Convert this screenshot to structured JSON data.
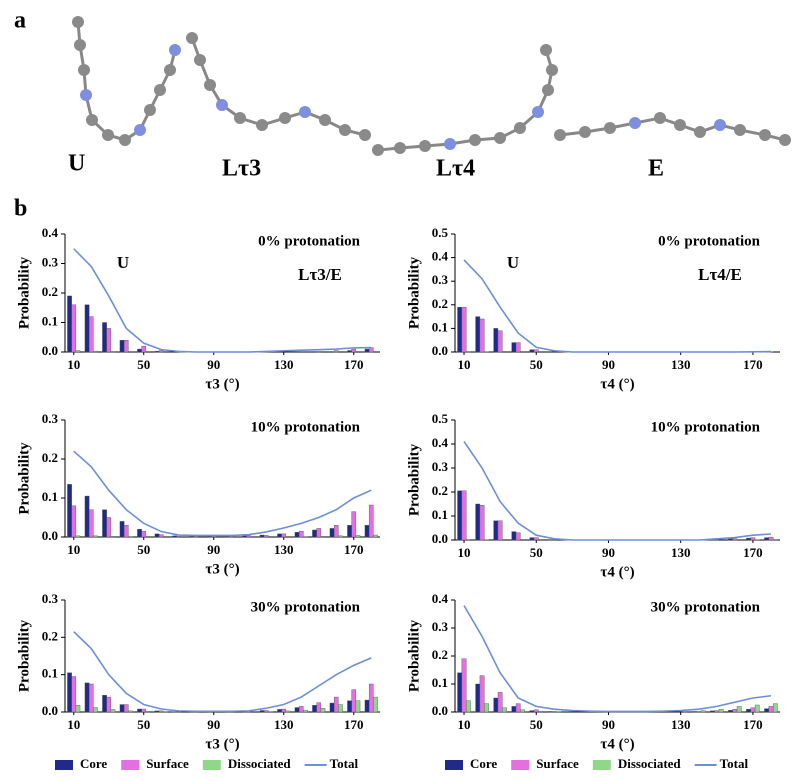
{
  "header": {
    "panel_a": "a",
    "panel_b": "b"
  },
  "molecules": [
    "U",
    "Lτ3",
    "Lτ4",
    "E"
  ],
  "chart_data": [
    {
      "type": "bar",
      "title": "0% protonation",
      "annotations": [
        "U",
        "Lτ3/E"
      ],
      "xlabel": "τ3 (°)",
      "ylabel": "Probability",
      "x": [
        10,
        20,
        30,
        40,
        50,
        60,
        70,
        80,
        90,
        100,
        110,
        120,
        130,
        140,
        150,
        160,
        170,
        180
      ],
      "xlim": [
        5,
        185
      ],
      "xticks": [
        10,
        50,
        90,
        130,
        170
      ],
      "ylim": [
        0,
        0.4
      ],
      "yticks": [
        {
          "value": 0,
          "label": "0.0"
        },
        0.1,
        0.2,
        0.3,
        0.4
      ],
      "series": [
        {
          "name": "Core",
          "color": "#1f2a8a",
          "values": [
            0.19,
            0.16,
            0.1,
            0.04,
            0.01,
            0.003,
            0,
            0,
            0,
            0,
            0,
            0,
            0,
            0,
            0,
            0,
            0.005,
            0.01
          ]
        },
        {
          "name": "Surface",
          "color": "#e46fe0",
          "values": [
            0.16,
            0.12,
            0.08,
            0.04,
            0.02,
            0.005,
            0,
            0,
            0,
            0,
            0,
            0,
            0,
            0,
            0.002,
            0.005,
            0.01,
            0.015
          ]
        },
        {
          "name": "Dissociated",
          "color": "#8fd88a",
          "values": [
            0.005,
            0.003,
            0.002,
            0,
            0,
            0,
            0,
            0,
            0,
            0,
            0,
            0,
            0,
            0,
            0,
            0,
            0,
            0
          ]
        },
        {
          "name": "Total",
          "color": "#6b8fd8",
          "type": "line",
          "values": [
            0.35,
            0.29,
            0.19,
            0.08,
            0.03,
            0.008,
            0.002,
            0,
            0,
            0,
            0,
            0.002,
            0.004,
            0.006,
            0.008,
            0.01,
            0.014,
            0.015
          ]
        }
      ]
    },
    {
      "type": "bar",
      "title": "0% protonation",
      "annotations": [
        "U",
        "Lτ4/E"
      ],
      "xlabel": "τ4 (°)",
      "ylabel": "Probability",
      "x": [
        10,
        20,
        30,
        40,
        50,
        60,
        70,
        80,
        90,
        100,
        110,
        120,
        130,
        140,
        150,
        160,
        170,
        180
      ],
      "xlim": [
        5,
        185
      ],
      "xticks": [
        10,
        50,
        90,
        130,
        170
      ],
      "ylim": [
        0,
        0.5
      ],
      "yticks": [
        {
          "value": 0,
          "label": "0.0"
        },
        0.1,
        0.2,
        0.3,
        0.4,
        0.5
      ],
      "series": [
        {
          "name": "Core",
          "color": "#1f2a8a",
          "values": [
            0.19,
            0.15,
            0.1,
            0.04,
            0.01,
            0,
            0,
            0,
            0,
            0,
            0,
            0,
            0,
            0,
            0,
            0,
            0,
            0
          ]
        },
        {
          "name": "Surface",
          "color": "#e46fe0",
          "values": [
            0.19,
            0.14,
            0.09,
            0.04,
            0.01,
            0,
            0,
            0,
            0,
            0,
            0,
            0,
            0,
            0,
            0,
            0,
            0,
            0.001
          ]
        },
        {
          "name": "Dissociated",
          "color": "#8fd88a",
          "values": [
            0.002,
            0.001,
            0,
            0,
            0,
            0,
            0,
            0,
            0,
            0,
            0,
            0,
            0,
            0,
            0,
            0,
            0,
            0
          ]
        },
        {
          "name": "Total",
          "color": "#6b8fd8",
          "type": "line",
          "values": [
            0.39,
            0.31,
            0.19,
            0.08,
            0.02,
            0.005,
            0,
            0,
            0,
            0,
            0,
            0,
            0,
            0,
            0,
            0,
            0.001,
            0.002
          ]
        }
      ]
    },
    {
      "type": "bar",
      "title": "10% protonation",
      "annotations": [],
      "xlabel": "τ3 (°)",
      "ylabel": "Probability",
      "x": [
        10,
        20,
        30,
        40,
        50,
        60,
        70,
        80,
        90,
        100,
        110,
        120,
        130,
        140,
        150,
        160,
        170,
        180
      ],
      "xlim": [
        5,
        185
      ],
      "xticks": [
        10,
        50,
        90,
        130,
        170
      ],
      "ylim": [
        0,
        0.3
      ],
      "yticks": [
        {
          "value": 0,
          "label": "0.0"
        },
        0.1,
        0.2,
        0.3
      ],
      "series": [
        {
          "name": "Core",
          "color": "#1f2a8a",
          "values": [
            0.135,
            0.105,
            0.07,
            0.04,
            0.02,
            0.008,
            0.003,
            0.002,
            0.002,
            0.002,
            0.003,
            0.005,
            0.008,
            0.012,
            0.018,
            0.022,
            0.03,
            0.03
          ]
        },
        {
          "name": "Surface",
          "color": "#e46fe0",
          "values": [
            0.08,
            0.07,
            0.05,
            0.03,
            0.015,
            0.006,
            0.002,
            0.002,
            0.002,
            0.002,
            0.003,
            0.004,
            0.008,
            0.015,
            0.022,
            0.03,
            0.065,
            0.082
          ]
        },
        {
          "name": "Dissociated",
          "color": "#8fd88a",
          "values": [
            0.003,
            0.003,
            0.002,
            0.001,
            0,
            0,
            0,
            0,
            0,
            0,
            0,
            0,
            0,
            0.001,
            0.002,
            0.003,
            0.004,
            0.005
          ]
        },
        {
          "name": "Total",
          "color": "#6b8fd8",
          "type": "line",
          "values": [
            0.22,
            0.18,
            0.12,
            0.07,
            0.035,
            0.014,
            0.005,
            0.004,
            0.004,
            0.004,
            0.006,
            0.013,
            0.023,
            0.035,
            0.05,
            0.07,
            0.1,
            0.12
          ]
        }
      ]
    },
    {
      "type": "bar",
      "title": "10% protonation",
      "annotations": [],
      "xlabel": "τ4 (°)",
      "ylabel": "Probability",
      "x": [
        10,
        20,
        30,
        40,
        50,
        60,
        70,
        80,
        90,
        100,
        110,
        120,
        130,
        140,
        150,
        160,
        170,
        180
      ],
      "xlim": [
        5,
        185
      ],
      "xticks": [
        10,
        50,
        90,
        130,
        170
      ],
      "ylim": [
        0,
        0.5
      ],
      "yticks": [
        {
          "value": 0,
          "label": "0.0"
        },
        0.1,
        0.2,
        0.3,
        0.4,
        0.5
      ],
      "series": [
        {
          "name": "Core",
          "color": "#1f2a8a",
          "values": [
            0.205,
            0.15,
            0.08,
            0.035,
            0.01,
            0.002,
            0,
            0,
            0,
            0,
            0,
            0,
            0,
            0,
            0.002,
            0.005,
            0.008,
            0.01
          ]
        },
        {
          "name": "Surface",
          "color": "#e46fe0",
          "values": [
            0.205,
            0.145,
            0.08,
            0.03,
            0.01,
            0.002,
            0,
            0,
            0,
            0,
            0,
            0,
            0,
            0,
            0.002,
            0.005,
            0.01,
            0.012
          ]
        },
        {
          "name": "Dissociated",
          "color": "#8fd88a",
          "values": [
            0.002,
            0.001,
            0,
            0,
            0,
            0,
            0,
            0,
            0,
            0,
            0,
            0,
            0,
            0,
            0,
            0,
            0.001,
            0.002
          ]
        },
        {
          "name": "Total",
          "color": "#6b8fd8",
          "type": "line",
          "values": [
            0.41,
            0.3,
            0.16,
            0.07,
            0.02,
            0.005,
            0,
            0,
            0,
            0,
            0,
            0,
            0,
            0,
            0.005,
            0.01,
            0.02,
            0.025
          ]
        }
      ]
    },
    {
      "type": "bar",
      "title": "30% protonation",
      "annotations": [],
      "xlabel": "τ3 (°)",
      "ylabel": "Probability",
      "legend": "bottom",
      "x": [
        10,
        20,
        30,
        40,
        50,
        60,
        70,
        80,
        90,
        100,
        110,
        120,
        130,
        140,
        150,
        160,
        170,
        180
      ],
      "xlim": [
        5,
        185
      ],
      "xticks": [
        10,
        50,
        90,
        130,
        170
      ],
      "ylim": [
        0,
        0.3
      ],
      "yticks": [
        {
          "value": 0,
          "label": "0.0"
        },
        0.1,
        0.2,
        0.3
      ],
      "series": [
        {
          "name": "Core",
          "color": "#1f2a8a",
          "values": [
            0.105,
            0.078,
            0.045,
            0.02,
            0.008,
            0.003,
            0.001,
            0.001,
            0.001,
            0.001,
            0.002,
            0.004,
            0.007,
            0.012,
            0.018,
            0.024,
            0.03,
            0.032
          ]
        },
        {
          "name": "Surface",
          "color": "#e46fe0",
          "values": [
            0.095,
            0.075,
            0.04,
            0.02,
            0.008,
            0.003,
            0.001,
            0.001,
            0.001,
            0.001,
            0.002,
            0.004,
            0.008,
            0.015,
            0.025,
            0.04,
            0.06,
            0.075
          ]
        },
        {
          "name": "Dissociated",
          "color": "#8fd88a",
          "values": [
            0.018,
            0.012,
            0.007,
            0.003,
            0.002,
            0.001,
            0,
            0,
            0,
            0,
            0,
            0.001,
            0.003,
            0.005,
            0.01,
            0.02,
            0.03,
            0.04
          ]
        },
        {
          "name": "Total",
          "color": "#6b8fd8",
          "type": "line",
          "values": [
            0.215,
            0.17,
            0.1,
            0.05,
            0.02,
            0.008,
            0.003,
            0.002,
            0.002,
            0.002,
            0.003,
            0.01,
            0.02,
            0.04,
            0.07,
            0.1,
            0.125,
            0.145
          ]
        }
      ]
    },
    {
      "type": "bar",
      "title": "30% protonation",
      "annotations": [],
      "xlabel": "τ4 (°)",
      "ylabel": "Probability",
      "legend": "bottom",
      "x": [
        10,
        20,
        30,
        40,
        50,
        60,
        70,
        80,
        90,
        100,
        110,
        120,
        130,
        140,
        150,
        160,
        170,
        180
      ],
      "xlim": [
        5,
        185
      ],
      "xticks": [
        10,
        50,
        90,
        130,
        170
      ],
      "ylim": [
        0,
        0.4
      ],
      "yticks": [
        {
          "value": 0,
          "label": "0.0"
        },
        0.1,
        0.2,
        0.3,
        0.4
      ],
      "series": [
        {
          "name": "Core",
          "color": "#1f2a8a",
          "values": [
            0.14,
            0.1,
            0.05,
            0.02,
            0.005,
            0.002,
            0,
            0,
            0,
            0,
            0,
            0,
            0,
            0.002,
            0.004,
            0.006,
            0.01,
            0.012
          ]
        },
        {
          "name": "Surface",
          "color": "#e46fe0",
          "values": [
            0.19,
            0.13,
            0.07,
            0.03,
            0.008,
            0.002,
            0,
            0,
            0,
            0,
            0,
            0,
            0,
            0.002,
            0.005,
            0.01,
            0.015,
            0.02
          ]
        },
        {
          "name": "Dissociated",
          "color": "#8fd88a",
          "values": [
            0.04,
            0.03,
            0.015,
            0.008,
            0.003,
            0.001,
            0,
            0,
            0,
            0,
            0,
            0,
            0.002,
            0.005,
            0.01,
            0.02,
            0.025,
            0.03
          ]
        },
        {
          "name": "Total",
          "color": "#6b8fd8",
          "type": "line",
          "values": [
            0.38,
            0.27,
            0.14,
            0.05,
            0.02,
            0.01,
            0.005,
            0.003,
            0.002,
            0.002,
            0.002,
            0.003,
            0.005,
            0.01,
            0.02,
            0.035,
            0.05,
            0.058
          ]
        }
      ]
    }
  ]
}
